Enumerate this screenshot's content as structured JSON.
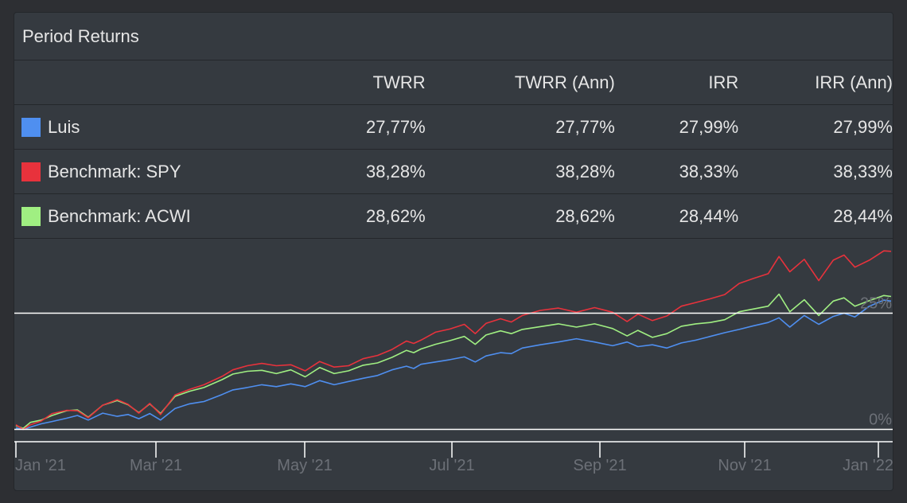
{
  "panel": {
    "title": "Period Returns"
  },
  "table": {
    "headers": [
      "",
      "TWRR",
      "TWRR (Ann)",
      "IRR",
      "IRR (Ann)"
    ],
    "rows": [
      {
        "name": "Luis",
        "color": "#4f8ff0",
        "twrr": "27,77%",
        "twrr_ann": "27,77%",
        "irr": "27,99%",
        "irr_ann": "27,99%"
      },
      {
        "name": "Benchmark: SPY",
        "color": "#e8323c",
        "twrr": "38,28%",
        "twrr_ann": "38,28%",
        "irr": "38,33%",
        "irr_ann": "38,33%"
      },
      {
        "name": "Benchmark: ACWI",
        "color": "#a0ef82",
        "twrr": "28,62%",
        "twrr_ann": "28,62%",
        "irr": "28,44%",
        "irr_ann": "28,44%"
      }
    ]
  },
  "chart_data": {
    "type": "line",
    "x_ticks": [
      "Jan '21",
      "Mar '21",
      "May '21",
      "Jul '21",
      "Sep '21",
      "Nov '21",
      "Jan '22"
    ],
    "y_ticks": [
      "0%",
      "25%"
    ],
    "y_tick_values": [
      0,
      25
    ],
    "ylim": [
      -1,
      41
    ],
    "grid": false,
    "legend": "table-above",
    "series": [
      {
        "name": "Luis",
        "color": "#4f8ff0",
        "x": [
          0,
          0.1,
          0.2,
          0.35,
          0.5,
          0.7,
          0.85,
          1.0,
          1.2,
          1.4,
          1.55,
          1.7,
          1.85,
          2.0,
          2.2,
          2.4,
          2.6,
          2.85,
          3.0,
          3.2,
          3.4,
          3.6,
          3.8,
          4.0,
          4.2,
          4.4,
          4.6,
          4.8,
          5.0,
          5.2,
          5.4,
          5.5,
          5.6,
          5.8,
          6.0,
          6.2,
          6.35,
          6.5,
          6.7,
          6.85,
          7.0,
          7.25,
          7.5,
          7.75,
          8.0,
          8.25,
          8.45,
          8.6,
          8.8,
          9.0,
          9.2,
          9.4,
          9.6,
          9.8,
          10.0,
          10.2,
          10.4,
          10.55,
          10.7,
          10.9,
          11.1,
          11.3,
          11.45,
          11.6,
          11.8,
          12.0,
          12.1
        ],
        "values": [
          0.3,
          0.0,
          0.5,
          1.2,
          1.7,
          2.4,
          3.0,
          2.0,
          3.5,
          2.8,
          3.2,
          2.3,
          3.4,
          2.0,
          4.5,
          5.5,
          6.0,
          7.5,
          8.5,
          9.0,
          9.6,
          9.2,
          9.8,
          9.2,
          10.5,
          9.6,
          10.3,
          11.0,
          11.6,
          12.8,
          13.6,
          13.1,
          14.0,
          14.5,
          15.0,
          15.6,
          14.5,
          15.8,
          16.5,
          16.3,
          17.5,
          18.2,
          18.8,
          19.5,
          18.8,
          18.0,
          18.8,
          17.8,
          18.2,
          17.5,
          18.6,
          19.2,
          20.0,
          20.8,
          21.5,
          22.3,
          23.0,
          24.0,
          22.0,
          24.5,
          22.6,
          24.3,
          25.0,
          24.2,
          26.5,
          27.8,
          27.6
        ]
      },
      {
        "name": "Benchmark: SPY",
        "color": "#e8323c",
        "x": [
          0,
          0.1,
          0.2,
          0.35,
          0.5,
          0.7,
          0.85,
          1.0,
          1.2,
          1.4,
          1.55,
          1.7,
          1.85,
          2.0,
          2.2,
          2.4,
          2.6,
          2.85,
          3.0,
          3.2,
          3.4,
          3.6,
          3.8,
          4.0,
          4.2,
          4.4,
          4.6,
          4.8,
          5.0,
          5.2,
          5.4,
          5.5,
          5.6,
          5.8,
          6.0,
          6.2,
          6.35,
          6.5,
          6.7,
          6.85,
          7.0,
          7.25,
          7.5,
          7.75,
          8.0,
          8.25,
          8.45,
          8.6,
          8.8,
          9.0,
          9.2,
          9.4,
          9.6,
          9.8,
          10.0,
          10.2,
          10.4,
          10.55,
          10.7,
          10.9,
          11.1,
          11.3,
          11.45,
          11.6,
          11.8,
          12.0,
          12.1
        ],
        "values": [
          1.0,
          0.0,
          1.0,
          1.8,
          3.4,
          4.1,
          4.0,
          2.5,
          5.2,
          6.4,
          5.4,
          3.5,
          5.6,
          3.2,
          7.4,
          8.6,
          9.6,
          11.4,
          12.8,
          13.7,
          14.2,
          13.7,
          13.9,
          12.6,
          14.6,
          13.4,
          13.7,
          15.2,
          15.9,
          17.2,
          19.0,
          18.5,
          19.2,
          20.9,
          21.6,
          22.6,
          20.6,
          22.8,
          23.8,
          23.1,
          24.5,
          25.6,
          26.1,
          25.2,
          26.2,
          25.2,
          23.2,
          24.8,
          23.4,
          24.4,
          26.5,
          27.3,
          28.1,
          29.0,
          31.4,
          32.5,
          33.5,
          37.2,
          33.9,
          36.6,
          32.0,
          36.4,
          37.5,
          34.9,
          36.4,
          38.4,
          38.3
        ]
      },
      {
        "name": "Benchmark: ACWI",
        "color": "#a0ef82",
        "x": [
          0,
          0.1,
          0.2,
          0.35,
          0.5,
          0.7,
          0.85,
          1.0,
          1.2,
          1.4,
          1.55,
          1.7,
          1.85,
          2.0,
          2.2,
          2.4,
          2.6,
          2.85,
          3.0,
          3.2,
          3.4,
          3.6,
          3.8,
          4.0,
          4.2,
          4.4,
          4.6,
          4.8,
          5.0,
          5.2,
          5.4,
          5.5,
          5.6,
          5.8,
          6.0,
          6.2,
          6.35,
          6.5,
          6.7,
          6.85,
          7.0,
          7.25,
          7.5,
          7.75,
          8.0,
          8.25,
          8.45,
          8.6,
          8.8,
          9.0,
          9.2,
          9.4,
          9.6,
          9.8,
          10.0,
          10.2,
          10.4,
          10.55,
          10.7,
          10.9,
          11.1,
          11.3,
          11.45,
          11.6,
          11.8,
          12.0,
          12.1
        ],
        "values": [
          0.8,
          0.2,
          1.5,
          2.0,
          3.0,
          4.0,
          4.2,
          2.6,
          5.2,
          6.2,
          5.3,
          3.6,
          5.5,
          3.4,
          7.1,
          8.2,
          9.0,
          10.7,
          11.9,
          12.5,
          12.7,
          12.0,
          12.8,
          11.3,
          13.3,
          12.0,
          12.6,
          13.8,
          14.3,
          15.5,
          17.0,
          16.5,
          17.3,
          18.3,
          19.1,
          20.0,
          18.3,
          20.3,
          21.2,
          20.6,
          21.5,
          22.1,
          22.7,
          22.0,
          22.7,
          21.7,
          20.1,
          21.3,
          19.8,
          20.6,
          22.2,
          22.7,
          23.0,
          23.6,
          25.3,
          25.9,
          26.5,
          29.1,
          25.3,
          27.9,
          24.5,
          27.6,
          28.3,
          26.5,
          27.7,
          28.8,
          28.6
        ]
      }
    ]
  }
}
